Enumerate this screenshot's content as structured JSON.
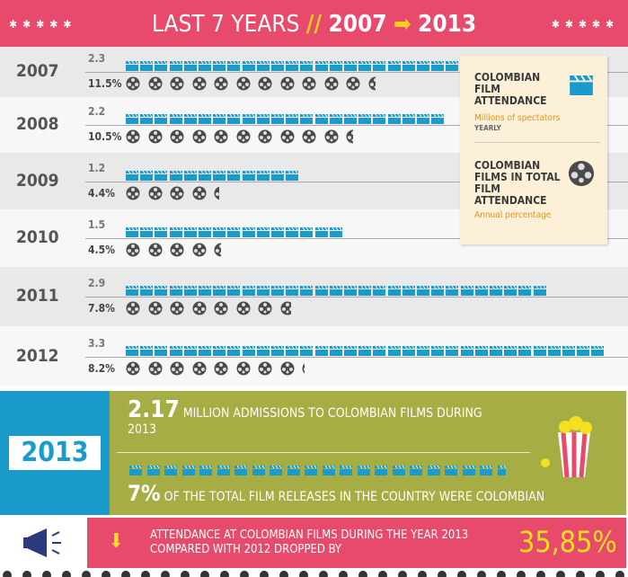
{
  "header": {
    "title": "LAST 7 YEARS",
    "from": "2007",
    "to": "2013"
  },
  "chart_data": {
    "type": "pictogram",
    "categories": [
      "2007",
      "2008",
      "2009",
      "2010",
      "2011",
      "2012"
    ],
    "series": [
      {
        "name": "COLOMBIAN FILM ATTENDANCE",
        "subtitle": "Millions of spectators",
        "note": "YEARLY",
        "color": "#1a9bcb",
        "values": [
          2.3,
          2.2,
          1.2,
          1.5,
          2.9,
          3.3
        ]
      },
      {
        "name": "COLOMBIAN FILMS IN TOTAL FILM ATTENDANCE",
        "subtitle": "Annual percentage",
        "color": "#4a4a4a",
        "values": [
          11.5,
          10.5,
          4.4,
          4.5,
          7.8,
          8.2
        ],
        "value_labels": [
          "11.5%",
          "10.5%",
          "4.4%",
          "4.5%",
          "7.8%",
          "8.2%"
        ]
      }
    ]
  },
  "highlight": {
    "year": "2013",
    "admissions": 2.17,
    "admissions_text": "MILLION ADMISSIONS TO COLOMBIAN FILMS DURING 2013",
    "share": "7%",
    "share_text": "OF THE TOTAL FILM RELEASES IN THE COUNTRY WERE COLOMBIAN"
  },
  "footer": {
    "text": "ATTENDANCE AT COLOMBIAN FILMS DURING THE YEAR 2013 COMPARED WITH 2012 DROPPED BY",
    "value": "35,85%"
  }
}
